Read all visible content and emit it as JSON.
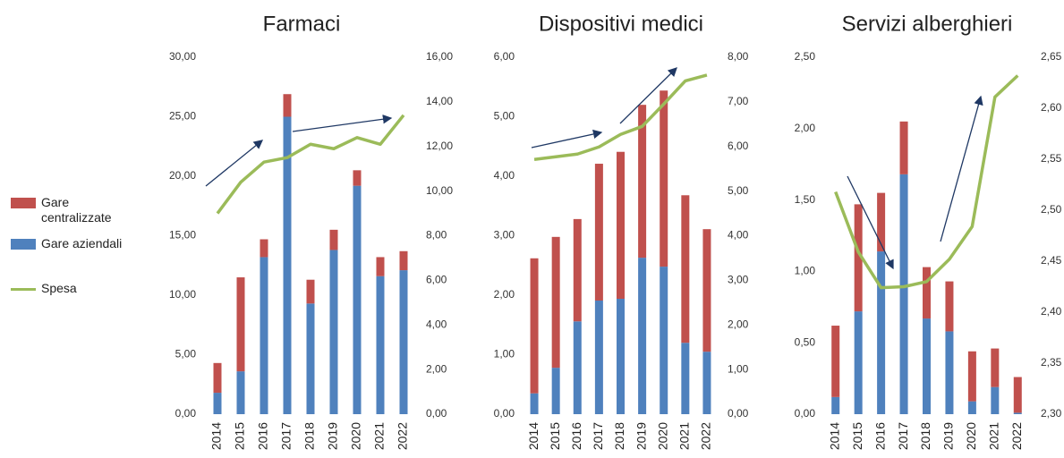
{
  "chart_data": [
    {
      "type": "bar",
      "title": "Farmaci",
      "categories": [
        "2014",
        "2015",
        "2016",
        "2017",
        "2018",
        "2019",
        "2020",
        "2021",
        "2022"
      ],
      "series": [
        {
          "name": "Gare aziendali",
          "color": "#4f81bd",
          "values": [
            1.8,
            3.6,
            13.2,
            25.0,
            9.3,
            13.8,
            19.2,
            11.6,
            12.1
          ]
        },
        {
          "name": "Gare centralizzate",
          "color": "#c0504d",
          "values": [
            2.5,
            7.9,
            1.5,
            1.9,
            2.0,
            1.7,
            1.3,
            1.6,
            1.6
          ]
        },
        {
          "name": "Spesa",
          "color": "#9bbb59",
          "type": "line",
          "axis": "y2",
          "values": [
            9.0,
            10.4,
            11.3,
            11.5,
            12.1,
            11.9,
            12.4,
            12.1,
            13.4
          ]
        }
      ],
      "ylim": [
        0,
        30
      ],
      "yticks": [
        {
          "value": 0,
          "label": "0,00"
        },
        {
          "value": 5,
          "label": "5,00"
        },
        {
          "value": 10,
          "label": "10,00"
        },
        {
          "value": 15,
          "label": "15,00"
        },
        {
          "value": 20,
          "label": "20,00"
        },
        {
          "value": 25,
          "label": "25,00"
        },
        {
          "value": 30,
          "label": "30,00"
        }
      ],
      "y2lim": [
        0,
        16
      ],
      "y2ticks": [
        {
          "value": 0,
          "label": "0,00"
        },
        {
          "value": 2,
          "label": "2,00"
        },
        {
          "value": 4,
          "label": "4,00"
        },
        {
          "value": 6,
          "label": "6,00"
        },
        {
          "value": 8,
          "label": "8,00"
        },
        {
          "value": 10,
          "label": "10,00"
        },
        {
          "value": 12,
          "label": "12,00"
        },
        {
          "value": 14,
          "label": "14,00"
        },
        {
          "value": 16,
          "label": "16,00"
        }
      ]
    },
    {
      "type": "bar",
      "title": "Dispositivi medici",
      "categories": [
        "2014",
        "2015",
        "2016",
        "2017",
        "2018",
        "2019",
        "2020",
        "2021",
        "2022"
      ],
      "series": [
        {
          "color": "#4f81bd",
          "values": [
            0.35,
            0.78,
            1.56,
            1.91,
            1.94,
            2.63,
            2.48,
            1.2,
            1.05
          ]
        },
        {
          "color": "#c0504d",
          "values": [
            2.27,
            2.2,
            1.72,
            2.3,
            2.47,
            2.57,
            2.96,
            2.48,
            2.06
          ]
        },
        {
          "color": "#9bbb59",
          "type": "line",
          "axis": "y2",
          "values": [
            5.71,
            5.77,
            5.83,
            5.99,
            6.27,
            6.45,
            6.95,
            7.47,
            7.6
          ]
        }
      ],
      "ylim": [
        0,
        6
      ],
      "yticks": [
        {
          "value": 0,
          "label": "0,00"
        },
        {
          "value": 1,
          "label": "1,00"
        },
        {
          "value": 2,
          "label": "2,00"
        },
        {
          "value": 3,
          "label": "3,00"
        },
        {
          "value": 4,
          "label": "4,00"
        },
        {
          "value": 5,
          "label": "5,00"
        },
        {
          "value": 6,
          "label": "6,00"
        }
      ],
      "y2lim": [
        0,
        8
      ],
      "y2ticks": [
        {
          "value": 0,
          "label": "0,00"
        },
        {
          "value": 1,
          "label": "1,00"
        },
        {
          "value": 2,
          "label": "2,00"
        },
        {
          "value": 3,
          "label": "3,00"
        },
        {
          "value": 4,
          "label": "4,00"
        },
        {
          "value": 5,
          "label": "5,00"
        },
        {
          "value": 6,
          "label": "6,00"
        },
        {
          "value": 7,
          "label": "7,00"
        },
        {
          "value": 8,
          "label": "8,00"
        }
      ]
    },
    {
      "type": "bar",
      "title": "Servizi alberghieri",
      "categories": [
        "2014",
        "2015",
        "2016",
        "2017",
        "2018",
        "2019",
        "2020",
        "2021",
        "2022"
      ],
      "series": [
        {
          "color": "#4f81bd",
          "values": [
            0.12,
            0.72,
            1.14,
            1.68,
            0.67,
            0.58,
            0.09,
            0.19,
            0.01
          ]
        },
        {
          "color": "#c0504d",
          "values": [
            0.5,
            0.75,
            0.41,
            0.37,
            0.36,
            0.35,
            0.35,
            0.27,
            0.25
          ]
        },
        {
          "color": "#9bbb59",
          "type": "line",
          "axis": "y2",
          "values": [
            2.518,
            2.459,
            2.424,
            2.425,
            2.43,
            2.452,
            2.484,
            2.611,
            2.632
          ]
        }
      ],
      "ylim": [
        0,
        2.5
      ],
      "yticks": [
        {
          "value": 0,
          "label": "0,00"
        },
        {
          "value": 0.5,
          "label": "0,50"
        },
        {
          "value": 1,
          "label": "1,00"
        },
        {
          "value": 1.5,
          "label": "1,50"
        },
        {
          "value": 2,
          "label": "2,00"
        },
        {
          "value": 2.5,
          "label": "2,50"
        }
      ],
      "y2lim": [
        2.3,
        2.65
      ],
      "y2ticks": [
        {
          "value": 2.3,
          "label": "2,30"
        },
        {
          "value": 2.35,
          "label": "2,35"
        },
        {
          "value": 2.4,
          "label": "2,40"
        },
        {
          "value": 2.45,
          "label": "2,45"
        },
        {
          "value": 2.5,
          "label": "2,50"
        },
        {
          "value": 2.55,
          "label": "2,55"
        },
        {
          "value": 2.6,
          "label": "2,60"
        },
        {
          "value": 2.65,
          "label": "2,65"
        }
      ]
    }
  ]
}
